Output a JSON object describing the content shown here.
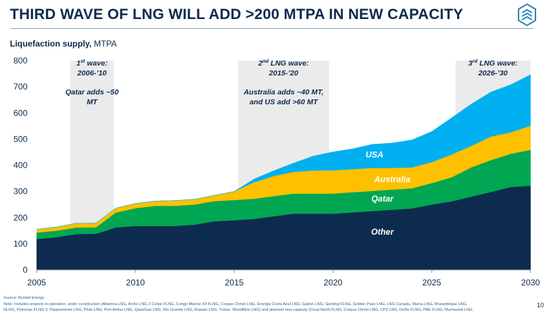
{
  "title": "THIRD WAVE OF LNG WILL ADD >200 MTPA IN NEW CAPACITY",
  "subtitle_bold": "Liquefaction supply,",
  "subtitle_unit": " MTPA",
  "footer": {
    "source": "Source: Rystad Energy",
    "note_line1": "Note: Includes projects in operation, under construction (Altamira LNG, Arctic LNG 2 Cedar FLNG, Congo Marine XII FLNG, Corpus Christi LNG, Energia Costa Azul LNG, Gabon LNG, Genting FLNG, Golden Pass LNG, LNG Canada, Marsa LNG, Mozambique LNG,",
    "note_line2": "NLNG, Petronas FLNG 3, Plaquemines LNG, Pluto LNG, Port Arthur LNG, QatarGas LNG, Rio Grande LNG, Ruwais LNG, Trotue, Woodfibre LNG) and planned new capacity (Coral North FLNG, Corpus Christi LNG, CP2 LNG, Delfin FLNG, PAE FLNG, Murmansk LNG,"
  },
  "page_number": "10",
  "colors": {
    "other": "#0d2b4e",
    "qatar": "#00a651",
    "australia": "#ffc000",
    "usa": "#00b0f0",
    "wave_band": "#ebebeb",
    "axis_text": "#0d2b4e"
  },
  "chart_data": {
    "type": "area",
    "stacked": true,
    "xlabel": "",
    "ylabel": "Liquefaction supply, MTPA",
    "xlim": [
      2005,
      2030
    ],
    "ylim": [
      0,
      800
    ],
    "xticks": [
      2005,
      2010,
      2015,
      2020,
      2025,
      2030
    ],
    "yticks": [
      0,
      100,
      200,
      300,
      400,
      500,
      600,
      700,
      800
    ],
    "x": [
      2005,
      2006,
      2007,
      2008,
      2009,
      2010,
      2011,
      2012,
      2013,
      2014,
      2015,
      2016,
      2017,
      2018,
      2019,
      2020,
      2021,
      2022,
      2023,
      2024,
      2025,
      2026,
      2027,
      2028,
      2029,
      2030
    ],
    "series": [
      {
        "name": "Other",
        "color_key": "other",
        "values": [
          118,
          125,
          137,
          138,
          162,
          168,
          168,
          168,
          173,
          186,
          190,
          195,
          205,
          215,
          215,
          215,
          220,
          225,
          230,
          235,
          250,
          262,
          280,
          298,
          317,
          322
        ]
      },
      {
        "name": "Qatar",
        "color_key": "qatar",
        "values": [
          25,
          25,
          25,
          25,
          57,
          68,
          77,
          77,
          77,
          77,
          77,
          77,
          77,
          77,
          77,
          77,
          77,
          77,
          77,
          77,
          82,
          92,
          112,
          122,
          127,
          137
        ]
      },
      {
        "name": "Australia",
        "color_key": "australia",
        "values": [
          12,
          14,
          16,
          16,
          17,
          18,
          18,
          20,
          20,
          22,
          33,
          63,
          77,
          83,
          88,
          89,
          88,
          88,
          83,
          80,
          80,
          87,
          82,
          90,
          82,
          92
        ]
      },
      {
        "name": "USA",
        "color_key": "usa",
        "values": [
          0,
          0,
          0,
          0,
          0,
          0,
          0,
          0,
          0,
          0,
          0,
          12,
          20,
          33,
          55,
          70,
          78,
          90,
          95,
          105,
          117,
          140,
          160,
          170,
          182,
          195
        ]
      }
    ],
    "waves": [
      {
        "x_range": [
          2006.7,
          2008.9
        ],
        "title_pre": "1",
        "title_sup": "st",
        "title_post": " wave:",
        "years": "2006-’10",
        "detail": [
          "Qatar adds ~50",
          "MT"
        ]
      },
      {
        "x_range": [
          2015.2,
          2019.8
        ],
        "title_pre": "2",
        "title_sup": "nd",
        "title_post": " LNG wave:",
        "years": "2015-’20",
        "detail": [
          "Australia adds ~40 MT,",
          "and US add >60 MT"
        ]
      },
      {
        "x_range": [
          2026.2,
          2030
        ],
        "title_pre": "3",
        "title_sup": "rd",
        "title_post": " LNG wave:",
        "years": "2026-’30",
        "detail": []
      }
    ],
    "series_labels": [
      {
        "text": "USA",
        "x": 2022.1,
        "y": 440,
        "color": "#ffffff"
      },
      {
        "text": "Australia",
        "x": 2023.0,
        "y": 346,
        "color": "#ffffff"
      },
      {
        "text": "Qatar",
        "x": 2022.5,
        "y": 272,
        "color": "#ffffff"
      },
      {
        "text": "Other",
        "x": 2022.5,
        "y": 145,
        "color": "#ffffff"
      }
    ]
  }
}
